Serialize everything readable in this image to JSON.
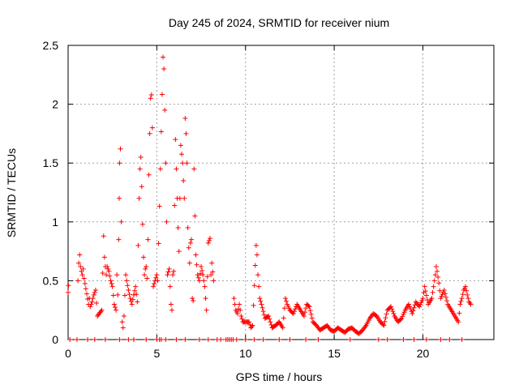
{
  "chart_data": {
    "type": "scatter",
    "title": "Day 245 of 2024, SRMTID for receiver nium",
    "xlabel": "GPS time / hours",
    "ylabel": "SRMTID / TECUs",
    "xlim": [
      0,
      24
    ],
    "ylim": [
      0,
      2.5
    ],
    "xticks": [
      0,
      5,
      10,
      15,
      20
    ],
    "yticks": [
      0,
      0.5,
      1,
      1.5,
      2,
      2.5
    ],
    "xtick_labels": [
      "0",
      "5",
      "10",
      "15",
      "20"
    ],
    "ytick_labels": [
      "0",
      "0.5",
      "1",
      "1.5",
      "2",
      "2.5"
    ],
    "grid": true,
    "marker": "+",
    "color": "#ff0000",
    "series": [
      {
        "name": "SRMTID",
        "points": [
          [
            0.0,
            0.4
          ],
          [
            0.02,
            0.46
          ],
          [
            0.55,
            0.5
          ],
          [
            0.6,
            0.65
          ],
          [
            0.65,
            0.72
          ],
          [
            0.7,
            0.62
          ],
          [
            0.75,
            0.58
          ],
          [
            0.8,
            0.55
          ],
          [
            0.85,
            0.6
          ],
          [
            0.9,
            0.52
          ],
          [
            1.15,
            0.3
          ],
          [
            1.2,
            0.35
          ],
          [
            1.25,
            0.28
          ],
          [
            1.35,
            0.32
          ],
          [
            1.45,
            0.38
          ],
          [
            1.55,
            0.42
          ],
          [
            1.65,
            0.2
          ],
          [
            1.75,
            0.22
          ],
          [
            1.9,
            0.25
          ],
          [
            2.0,
            0.88
          ],
          [
            2.05,
            0.7
          ],
          [
            2.1,
            0.62
          ],
          [
            2.15,
            0.55
          ],
          [
            2.2,
            0.62
          ],
          [
            2.3,
            0.58
          ],
          [
            2.4,
            0.5
          ],
          [
            2.5,
            0.45
          ],
          [
            2.6,
            0.3
          ],
          [
            2.7,
            0.25
          ],
          [
            2.75,
            0.55
          ],
          [
            2.8,
            0.38
          ],
          [
            2.85,
            0.85
          ],
          [
            2.88,
            1.2
          ],
          [
            2.9,
            1.5
          ],
          [
            2.95,
            1.62
          ],
          [
            3.0,
            1.0
          ],
          [
            3.05,
            0.15
          ],
          [
            3.1,
            0.1
          ],
          [
            3.15,
            0.2
          ],
          [
            3.25,
            0.55
          ],
          [
            3.3,
            0.5
          ],
          [
            3.4,
            0.42
          ],
          [
            3.5,
            0.35
          ],
          [
            3.6,
            0.3
          ],
          [
            3.7,
            0.38
          ],
          [
            3.8,
            0.45
          ],
          [
            3.9,
            0.32
          ],
          [
            3.95,
            0.8
          ],
          [
            4.0,
            1.2
          ],
          [
            4.05,
            1.45
          ],
          [
            4.1,
            1.55
          ],
          [
            4.15,
            1.3
          ],
          [
            4.2,
            0.98
          ],
          [
            4.25,
            0.7
          ],
          [
            4.3,
            0.55
          ],
          [
            4.35,
            0.6
          ],
          [
            4.4,
            0.62
          ],
          [
            4.45,
            0.52
          ],
          [
            4.5,
            0.85
          ],
          [
            4.55,
            1.4
          ],
          [
            4.6,
            1.75
          ],
          [
            4.65,
            2.05
          ],
          [
            4.7,
            2.08
          ],
          [
            4.75,
            1.8
          ],
          [
            4.8,
            0.45
          ],
          [
            4.9,
            0.5
          ],
          [
            5.0,
            0.55
          ],
          [
            5.05,
            0.5
          ],
          [
            5.35,
            2.4
          ],
          [
            5.4,
            2.3
          ],
          [
            5.45,
            1.95
          ],
          [
            5.5,
            1.5
          ],
          [
            5.55,
            1.0
          ],
          [
            5.6,
            0.55
          ],
          [
            5.7,
            0.6
          ],
          [
            5.8,
            0.3
          ],
          [
            5.85,
            0.25
          ],
          [
            5.9,
            0.55
          ],
          [
            5.95,
            0.58
          ],
          [
            6.05,
            1.7
          ],
          [
            6.1,
            1.45
          ],
          [
            6.15,
            1.2
          ],
          [
            6.2,
            0.95
          ],
          [
            6.25,
            0.75
          ],
          [
            6.35,
            1.65
          ],
          [
            6.45,
            1.5
          ],
          [
            6.55,
            1.2
          ],
          [
            6.6,
            1.88
          ],
          [
            6.65,
            1.75
          ],
          [
            6.7,
            1.5
          ],
          [
            6.75,
            0.95
          ],
          [
            6.8,
            0.78
          ],
          [
            6.85,
            0.65
          ],
          [
            6.9,
            0.82
          ],
          [
            6.95,
            0.85
          ],
          [
            7.0,
            0.35
          ],
          [
            7.05,
            0.33
          ],
          [
            7.1,
            1.45
          ],
          [
            7.15,
            1.05
          ],
          [
            7.2,
            0.72
          ],
          [
            7.3,
            0.55
          ],
          [
            7.4,
            0.5
          ],
          [
            7.5,
            0.62
          ],
          [
            7.6,
            0.55
          ],
          [
            7.7,
            0.45
          ],
          [
            7.8,
            0.25
          ],
          [
            7.9,
            0.82
          ],
          [
            8.0,
            0.86
          ],
          [
            8.05,
            0.55
          ],
          [
            8.1,
            0.65
          ],
          [
            8.2,
            0.5
          ],
          [
            9.35,
            0.35
          ],
          [
            9.45,
            0.25
          ],
          [
            9.55,
            0.22
          ],
          [
            9.65,
            0.3
          ],
          [
            9.75,
            0.2
          ],
          [
            9.85,
            0.15
          ],
          [
            10.2,
            0.15
          ],
          [
            10.3,
            0.1
          ],
          [
            10.4,
            0.12
          ],
          [
            10.6,
            0.8
          ],
          [
            10.65,
            0.72
          ],
          [
            10.7,
            0.55
          ],
          [
            10.75,
            0.45
          ],
          [
            10.8,
            0.35
          ],
          [
            10.9,
            0.3
          ],
          [
            11.1,
            0.18
          ],
          [
            11.3,
            0.2
          ],
          [
            11.5,
            0.1
          ],
          [
            11.7,
            0.12
          ],
          [
            11.9,
            0.15
          ],
          [
            12.1,
            0.1
          ],
          [
            12.25,
            0.35
          ],
          [
            12.35,
            0.3
          ],
          [
            12.5,
            0.25
          ],
          [
            12.7,
            0.22
          ],
          [
            12.9,
            0.3
          ],
          [
            13.1,
            0.25
          ],
          [
            13.3,
            0.2
          ],
          [
            13.45,
            0.3
          ],
          [
            13.6,
            0.28
          ],
          [
            13.8,
            0.15
          ],
          [
            14.0,
            0.12
          ],
          [
            14.2,
            0.08
          ],
          [
            14.4,
            0.1
          ],
          [
            14.6,
            0.12
          ],
          [
            14.8,
            0.08
          ],
          [
            15.0,
            0.07
          ],
          [
            15.2,
            0.1
          ],
          [
            15.4,
            0.08
          ],
          [
            15.6,
            0.06
          ],
          [
            15.8,
            0.09
          ],
          [
            16.0,
            0.1
          ],
          [
            16.2,
            0.07
          ],
          [
            16.4,
            0.05
          ],
          [
            16.6,
            0.08
          ],
          [
            16.8,
            0.12
          ],
          [
            17.0,
            0.18
          ],
          [
            17.2,
            0.22
          ],
          [
            17.4,
            0.2
          ],
          [
            17.6,
            0.15
          ],
          [
            17.8,
            0.12
          ],
          [
            18.0,
            0.25
          ],
          [
            18.2,
            0.28
          ],
          [
            18.4,
            0.2
          ],
          [
            18.6,
            0.15
          ],
          [
            18.8,
            0.18
          ],
          [
            19.0,
            0.25
          ],
          [
            19.2,
            0.3
          ],
          [
            19.4,
            0.22
          ],
          [
            19.6,
            0.32
          ],
          [
            19.8,
            0.28
          ],
          [
            20.0,
            0.35
          ],
          [
            20.1,
            0.45
          ],
          [
            20.3,
            0.3
          ],
          [
            20.5,
            0.35
          ],
          [
            20.7,
            0.55
          ],
          [
            20.75,
            0.62
          ],
          [
            20.8,
            0.58
          ],
          [
            20.9,
            0.48
          ],
          [
            21.0,
            0.35
          ],
          [
            21.2,
            0.42
          ],
          [
            21.4,
            0.3
          ],
          [
            21.6,
            0.25
          ],
          [
            21.8,
            0.2
          ],
          [
            22.0,
            0.15
          ],
          [
            22.1,
            0.3
          ],
          [
            22.2,
            0.35
          ],
          [
            22.3,
            0.42
          ],
          [
            22.4,
            0.45
          ],
          [
            22.5,
            0.38
          ],
          [
            22.6,
            0.32
          ],
          [
            22.7,
            0.3
          ]
        ],
        "zero_points": [
          0.1,
          0.5,
          1.1,
          1.5,
          2.1,
          2.9,
          3.4,
          3.7,
          4.4,
          5.0,
          5.15,
          5.25,
          5.5,
          6.1,
          6.6,
          7.4,
          7.9,
          8.4,
          8.6,
          8.9,
          9.0,
          9.1,
          9.2,
          9.3,
          9.5,
          10.0,
          10.5,
          11.0,
          11.9,
          12.5,
          13.4,
          14.1,
          15.9,
          17.5,
          18.0,
          18.9,
          19.5,
          20.2,
          21.0,
          21.5,
          22.2
        ]
      }
    ]
  }
}
